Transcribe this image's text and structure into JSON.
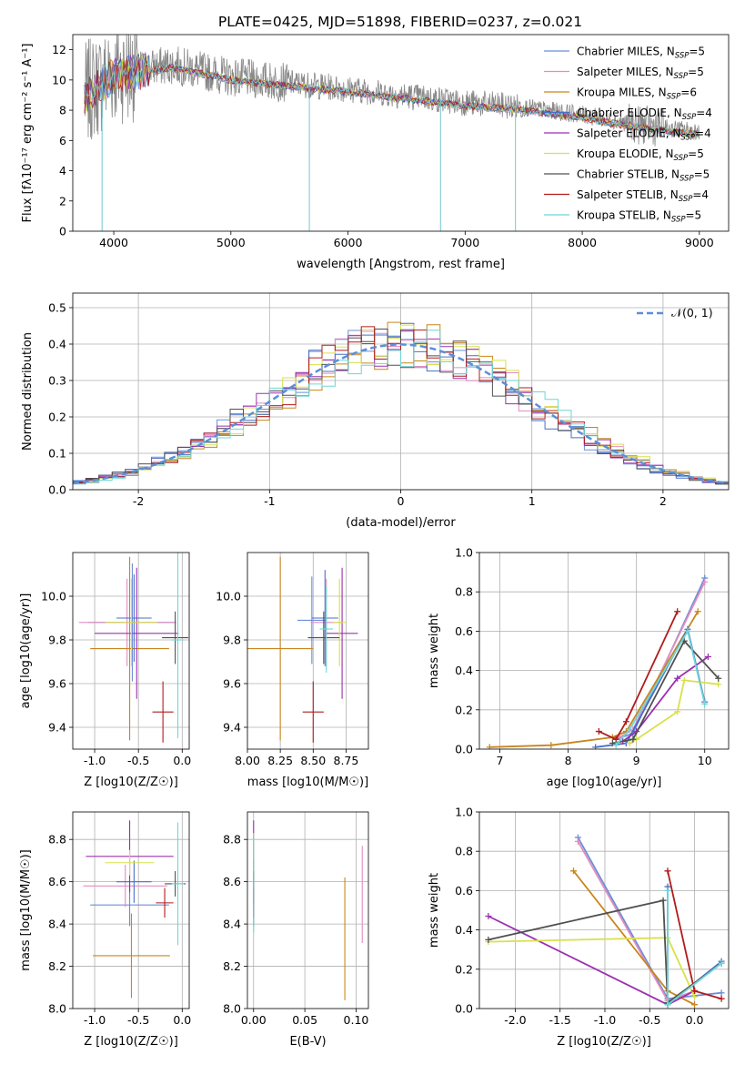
{
  "figure_title": "PLATE=0425, MJD=51898, FIBERID=0237, z=0.021",
  "colors": [
    "#6a8fd8",
    "#e38cc0",
    "#c8861e",
    "#4a6fc8",
    "#9b30b0",
    "#d9e04c",
    "#505050",
    "#b01c1c",
    "#6fd6d6"
  ],
  "models": [
    {
      "name": "Chabrier MILES",
      "nssp": "5",
      "color": "#6a8fd8"
    },
    {
      "name": "Salpeter MILES",
      "nssp": "5",
      "color": "#e38cc0"
    },
    {
      "name": "Kroupa MILES",
      "nssp": "6",
      "color": "#c8861e"
    },
    {
      "name": "Chabrier ELODIE",
      "nssp": "4",
      "color": "#4a6fc8"
    },
    {
      "name": "Salpeter ELODIE",
      "nssp": "4",
      "color": "#9b30b0"
    },
    {
      "name": "Kroupa ELODIE",
      "nssp": "5",
      "color": "#d9e04c"
    },
    {
      "name": "Chabrier STELIB",
      "nssp": "5",
      "color": "#505050"
    },
    {
      "name": "Salpeter STELIB",
      "nssp": "4",
      "color": "#b01c1c"
    },
    {
      "name": "Kroupa STELIB",
      "nssp": "5",
      "color": "#6fd6d6"
    }
  ],
  "chart_data": [
    {
      "id": "spectrum",
      "type": "line",
      "xlabel": "wavelength [Angstrom, rest frame]",
      "ylabel": "Flux [fλ10⁻¹⁷ erg cm⁻² s⁻¹ A⁻¹]",
      "xlim": [
        3650,
        9250
      ],
      "ylim": [
        0,
        13
      ],
      "xticks": [
        4000,
        5000,
        6000,
        7000,
        8000,
        9000
      ],
      "yticks": [
        0,
        2,
        4,
        6,
        8,
        10,
        12
      ],
      "legend": "top-right",
      "data_envelope": {
        "x": [
          3750,
          4000,
          4500,
          5000,
          6000,
          7000,
          7500,
          8000,
          8500,
          9000
        ],
        "y": [
          9,
          10.5,
          11,
          10.2,
          9.4,
          8.5,
          8.2,
          7.7,
          7.0,
          6.6
        ]
      },
      "dropouts": [
        {
          "x": 3900,
          "y": 0
        },
        {
          "x": 5670,
          "y": 0
        },
        {
          "x": 6790,
          "y": 0
        },
        {
          "x": 7430,
          "y": 0
        }
      ],
      "grid": false
    },
    {
      "id": "residual_hist",
      "type": "step",
      "xlabel": "(data-model)/error",
      "ylabel": "Normed distribution",
      "xlim": [
        -2.5,
        2.5
      ],
      "ylim": [
        0,
        0.54
      ],
      "xticks": [
        -2,
        -1,
        0,
        1,
        2
      ],
      "yticks": [
        0.0,
        0.1,
        0.2,
        0.3,
        0.4,
        0.5
      ],
      "legend": "top-right",
      "reference": {
        "label": "𝒩(0, 1)",
        "mean": 0,
        "std": 1
      },
      "grid": true
    },
    {
      "id": "age_vs_Z",
      "type": "errorbar",
      "xlabel": "Z [log10(Z/Z☉)]",
      "ylabel": "age  [log10(age/yr)]",
      "xlim": [
        -1.25,
        0.08
      ],
      "ylim": [
        9.3,
        10.2
      ],
      "xticks": [
        -1.0,
        -0.5,
        0.0
      ],
      "yticks": [
        9.4,
        9.6,
        9.8,
        10.0
      ],
      "points": [
        {
          "x": -0.57,
          "y": 9.88,
          "xerr": 0.5,
          "yerr": 0.27
        },
        {
          "x": -0.63,
          "y": 9.88,
          "xerr": 0.55,
          "yerr": 0.2
        },
        {
          "x": -0.6,
          "y": 9.76,
          "xerr": 0.45,
          "yerr": 0.42
        },
        {
          "x": -0.55,
          "y": 9.9,
          "xerr": 0.2,
          "yerr": 0.2
        },
        {
          "x": -0.52,
          "y": 9.83,
          "xerr": 0.48,
          "yerr": 0.3
        },
        {
          "x": -0.58,
          "y": 9.88,
          "xerr": 0.3,
          "yerr": 0.2
        },
        {
          "x": -0.08,
          "y": 9.81,
          "xerr": 0.15,
          "yerr": 0.12
        },
        {
          "x": -0.22,
          "y": 9.47,
          "xerr": 0.12,
          "yerr": 0.14
        },
        {
          "x": -0.05,
          "y": 9.8,
          "xerr": 0.07,
          "yerr": 0.45
        }
      ],
      "grid": true
    },
    {
      "id": "age_vs_mass",
      "type": "errorbar",
      "xlabel": "mass [log10(M/M☉)]",
      "ylabel": "",
      "xlim": [
        8.0,
        8.92
      ],
      "ylim": [
        9.3,
        10.2
      ],
      "xticks": [
        8.0,
        8.25,
        8.5,
        8.75
      ],
      "yticks": [
        9.4,
        9.6,
        9.8,
        10.0
      ],
      "points": [
        {
          "x": 8.49,
          "y": 9.89,
          "xerr": 0.11,
          "yerr": 0.2
        },
        {
          "x": 8.6,
          "y": 9.88,
          "xerr": 0.12,
          "yerr": 0.2
        },
        {
          "x": 8.25,
          "y": 9.76,
          "xerr": 0.25,
          "yerr": 0.42
        },
        {
          "x": 8.59,
          "y": 9.9,
          "xerr": 0.1,
          "yerr": 0.22
        },
        {
          "x": 8.72,
          "y": 9.83,
          "xerr": 0.12,
          "yerr": 0.3
        },
        {
          "x": 8.7,
          "y": 9.88,
          "xerr": 0.05,
          "yerr": 0.2
        },
        {
          "x": 8.58,
          "y": 9.81,
          "xerr": 0.12,
          "yerr": 0.12
        },
        {
          "x": 8.5,
          "y": 9.47,
          "xerr": 0.08,
          "yerr": 0.14
        },
        {
          "x": 8.6,
          "y": 9.85,
          "xerr": 0.05,
          "yerr": 0.2
        }
      ],
      "grid": true
    },
    {
      "id": "weight_vs_age",
      "type": "line",
      "xlabel": "age  [log10(age/yr)]",
      "ylabel": "mass weight",
      "xlim": [
        6.7,
        10.35
      ],
      "ylim": [
        0,
        1
      ],
      "xticks": [
        7,
        8,
        9,
        10
      ],
      "yticks": [
        0.0,
        0.2,
        0.4,
        0.6,
        0.8,
        1.0
      ],
      "series": [
        {
          "x": [
            8.7,
            8.95,
            10.0
          ],
          "y": [
            0.05,
            0.08,
            0.87
          ]
        },
        {
          "x": [
            8.75,
            8.95,
            10.0
          ],
          "y": [
            0.06,
            0.1,
            0.85
          ]
        },
        {
          "x": [
            6.85,
            7.75,
            8.65,
            8.85,
            9.9
          ],
          "y": [
            0.01,
            0.02,
            0.06,
            0.09,
            0.7
          ]
        },
        {
          "x": [
            8.4,
            8.85,
            9.75,
            10.0
          ],
          "y": [
            0.01,
            0.03,
            0.61,
            0.24
          ]
        },
        {
          "x": [
            8.8,
            9.0,
            9.6,
            10.05
          ],
          "y": [
            0.04,
            0.09,
            0.36,
            0.47
          ]
        },
        {
          "x": [
            8.9,
            9.0,
            9.6,
            9.7,
            10.2
          ],
          "y": [
            0.03,
            0.05,
            0.19,
            0.35,
            0.33
          ]
        },
        {
          "x": [
            8.65,
            8.95,
            9.7,
            10.2
          ],
          "y": [
            0.03,
            0.05,
            0.55,
            0.36
          ]
        },
        {
          "x": [
            8.45,
            8.7,
            8.85,
            9.6
          ],
          "y": [
            0.09,
            0.05,
            0.14,
            0.7
          ]
        },
        {
          "x": [
            8.7,
            8.9,
            9.75,
            10.0
          ],
          "y": [
            0.02,
            0.1,
            0.6,
            0.23
          ]
        }
      ],
      "grid": true
    },
    {
      "id": "mass_vs_Z",
      "type": "errorbar",
      "xlabel": "Z [log10(Z/Z☉)]",
      "ylabel": "mass [log10(M/M☉)]",
      "xlim": [
        -1.25,
        0.08
      ],
      "ylim": [
        8.0,
        8.93
      ],
      "xticks": [
        -1.0,
        -0.5,
        0.0
      ],
      "yticks": [
        8.0,
        8.2,
        8.4,
        8.6,
        8.8
      ],
      "points": [
        {
          "x": -0.6,
          "y": 8.49,
          "xerr": 0.45,
          "yerr": 0.1
        },
        {
          "x": -0.65,
          "y": 8.58,
          "xerr": 0.48,
          "yerr": 0.1
        },
        {
          "x": -0.58,
          "y": 8.25,
          "xerr": 0.44,
          "yerr": 0.2
        },
        {
          "x": -0.55,
          "y": 8.6,
          "xerr": 0.2,
          "yerr": 0.1
        },
        {
          "x": -0.6,
          "y": 8.72,
          "xerr": 0.5,
          "yerr": 0.17
        },
        {
          "x": -0.6,
          "y": 8.69,
          "xerr": 0.28,
          "yerr": 0.06
        },
        {
          "x": -0.08,
          "y": 8.59,
          "xerr": 0.12,
          "yerr": 0.06
        },
        {
          "x": -0.2,
          "y": 8.5,
          "xerr": 0.1,
          "yerr": 0.07
        },
        {
          "x": -0.05,
          "y": 8.59,
          "xerr": 0.07,
          "yerr": 0.29
        }
      ],
      "grid": true
    },
    {
      "id": "mass_vs_ebv",
      "type": "errorbar",
      "xlabel": "E(B-V)",
      "ylabel": "",
      "xlim": [
        -0.006,
        0.112
      ],
      "ylim": [
        8.0,
        8.93
      ],
      "xticks": [
        0.0,
        0.05,
        0.1
      ],
      "yticks": [
        8.0,
        8.2,
        8.4,
        8.6,
        8.8
      ],
      "points": [
        {
          "x": 0.0,
          "y": 8.49,
          "xerr": 0,
          "yerr": 0.1
        },
        {
          "x": 0.106,
          "y": 8.54,
          "xerr": 0,
          "yerr": 0.23
        },
        {
          "x": 0.089,
          "y": 8.33,
          "xerr": 0,
          "yerr": 0.29
        },
        {
          "x": 0.0,
          "y": 8.6,
          "xerr": 0,
          "yerr": 0.1
        },
        {
          "x": 0.0,
          "y": 8.72,
          "xerr": 0,
          "yerr": 0.17
        },
        {
          "x": 0.0,
          "y": 8.69,
          "xerr": 0,
          "yerr": 0.14
        },
        {
          "x": 0.0,
          "y": 8.59,
          "xerr": 0,
          "yerr": 0.06
        },
        {
          "x": 0.0,
          "y": 8.5,
          "xerr": 0,
          "yerr": 0.07
        },
        {
          "x": 0.0,
          "y": 8.59,
          "xerr": 0,
          "yerr": 0.23
        }
      ],
      "grid": true
    },
    {
      "id": "weight_vs_Z",
      "type": "line",
      "xlabel": "Z [log10(Z/Z☉)]",
      "ylabel": "mass weight",
      "xlim": [
        -2.4,
        0.38
      ],
      "ylim": [
        0,
        1
      ],
      "xticks": [
        -2.0,
        -1.5,
        -1.0,
        -0.5,
        0.0
      ],
      "yticks": [
        0.0,
        0.2,
        0.4,
        0.6,
        0.8,
        1.0
      ],
      "series": [
        {
          "x": [
            -1.3,
            -0.3,
            0.3
          ],
          "y": [
            0.87,
            0.05,
            0.08
          ]
        },
        {
          "x": [
            -1.3,
            -0.3,
            0.0
          ],
          "y": [
            0.85,
            0.04,
            0.09
          ]
        },
        {
          "x": [
            -1.35,
            -0.3,
            0.0
          ],
          "y": [
            0.7,
            0.09,
            0.02
          ]
        },
        {
          "x": [
            -0.3,
            -0.3,
            0.3
          ],
          "y": [
            0.62,
            0.02,
            0.24
          ]
        },
        {
          "x": [
            -2.3,
            -0.3,
            0.0
          ],
          "y": [
            0.47,
            0.02,
            0.09
          ]
        },
        {
          "x": [
            -2.3,
            -0.3,
            0.0
          ],
          "y": [
            0.34,
            0.36,
            0.06
          ]
        },
        {
          "x": [
            -2.3,
            -0.35,
            -0.3,
            0.3
          ],
          "y": [
            0.35,
            0.55,
            0.03,
            0.23
          ]
        },
        {
          "x": [
            -0.3,
            0.0,
            0.3
          ],
          "y": [
            0.7,
            0.09,
            0.05
          ]
        },
        {
          "x": [
            -0.3,
            -0.3,
            0.3
          ],
          "y": [
            0.6,
            0.02,
            0.23
          ]
        }
      ],
      "grid": true
    }
  ]
}
